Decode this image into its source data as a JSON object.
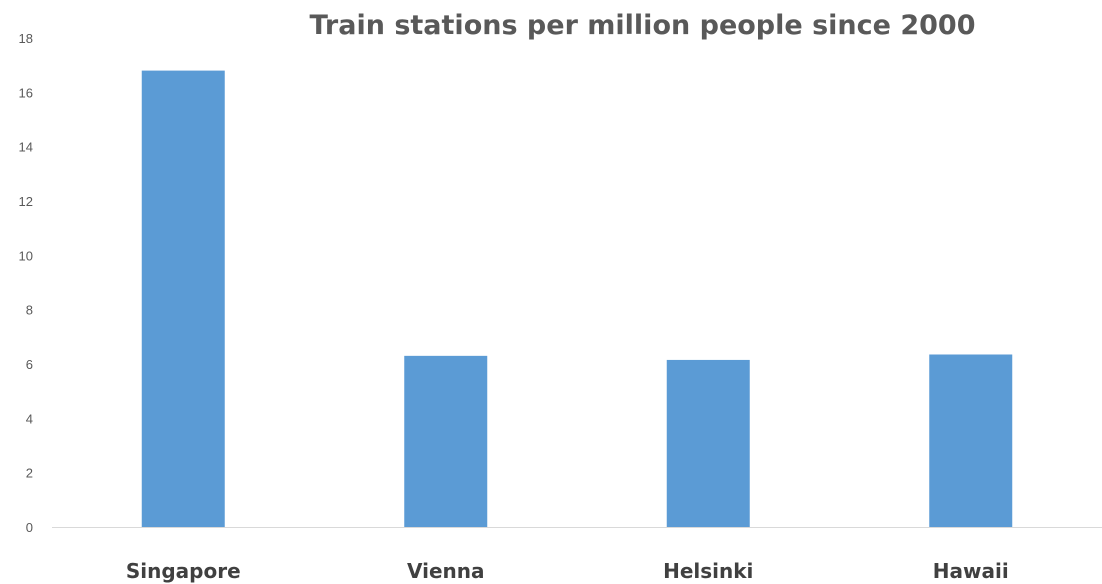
{
  "chart_data": {
    "type": "bar",
    "title": "Train stations per million people since 2000",
    "categories": [
      "Singapore",
      "Vienna",
      "Helsinki",
      "Hawaii"
    ],
    "values": [
      16.8,
      6.3,
      6.15,
      6.35
    ],
    "ylim": [
      0,
      18
    ],
    "yticks": [
      "0",
      "2",
      "4",
      "6",
      "8",
      "10",
      "12",
      "14",
      "16",
      "18"
    ],
    "xlabel": "",
    "ylabel": "",
    "grid": false,
    "bar_color": "#5B9BD5",
    "axis_color": "#D9D9D9"
  }
}
